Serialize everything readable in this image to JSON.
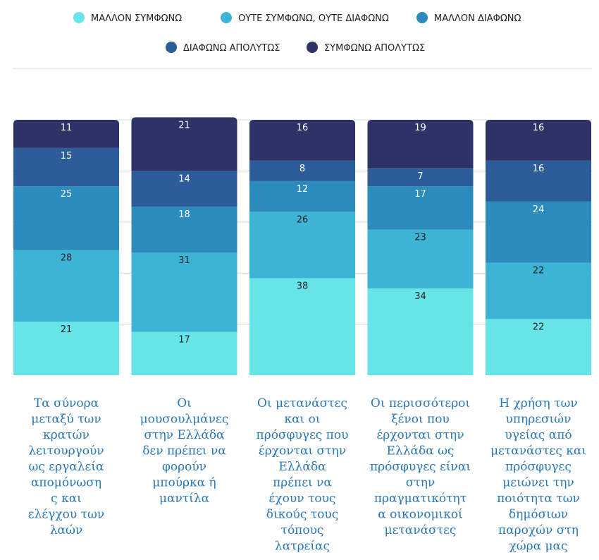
{
  "chart_data": {
    "type": "bar",
    "stacked": true,
    "categories": [
      [
        "Τα σύνορα",
        "μεταξύ των",
        "κρατών",
        "λειτουργούν",
        "ως εργαλεία",
        "απομόνωση",
        "ς και",
        "ελέγχου των",
        "λαών"
      ],
      [
        "Οι",
        "μουσουλμάνες",
        "στην Ελλάδα",
        "δεν πρέπει να",
        "φορούν",
        "μπούρκα ή",
        "μαντίλα"
      ],
      [
        "Οι μετανάστες",
        "και οι",
        "πρόσφυγες που",
        "έρχονται στην",
        "Ελλάδα",
        "πρέπει να",
        "έχουν τους",
        "δικούς τους",
        "τόπους",
        "λατρείας"
      ],
      [
        "Οι περισσότεροι",
        "ξένοι που",
        "έρχονται στην",
        "Ελλάδα ως",
        "πρόσφυγες είναι",
        "στην",
        "πραγματικότητ",
        "α οικονομικοί",
        "μετανάστες"
      ],
      [
        "Η χρήση των",
        "υπηρεσιών",
        "υγείας από",
        "μετανάστες και",
        "πρόσφυγες",
        "μειώνει την",
        "ποιότητα των",
        "δημόσιων",
        "παροχών στη",
        "χώρα μας"
      ]
    ],
    "series": [
      {
        "name": "ΜΑΛΛΟΝ ΣΥΜΦΩΝΩ",
        "color": "#66e4e8",
        "text_color": "#222222",
        "values": [
          21,
          17,
          38,
          34,
          22
        ]
      },
      {
        "name": "ΟΥΤΕ ΣΥΜΦΩΝΩ, ΟΥΤΕ ΔΙΑΦΩΝΩ",
        "color": "#3db3d6",
        "text_color": "#222222",
        "values": [
          28,
          31,
          26,
          23,
          22
        ]
      },
      {
        "name": "ΜΑΛΛΟΝ ΔΙΑΦΩΝΩ",
        "color": "#2b8bbc",
        "text_color": "#ffffff",
        "values": [
          25,
          18,
          12,
          17,
          24
        ]
      },
      {
        "name": "ΔΙΑΦΩΝΩ ΑΠΟΛΥΤΩΣ",
        "color": "#2c5c9a",
        "text_color": "#ffffff",
        "values": [
          15,
          14,
          8,
          7,
          16
        ]
      },
      {
        "name": "ΣΥΜΦΩΝΩ ΑΠΟΛΥΤΩΣ",
        "color": "#2e3367",
        "text_color": "#ffffff",
        "values": [
          11,
          21,
          16,
          19,
          16
        ]
      }
    ],
    "ylim": [
      0,
      100
    ],
    "grid": true,
    "legend_position": "top"
  }
}
